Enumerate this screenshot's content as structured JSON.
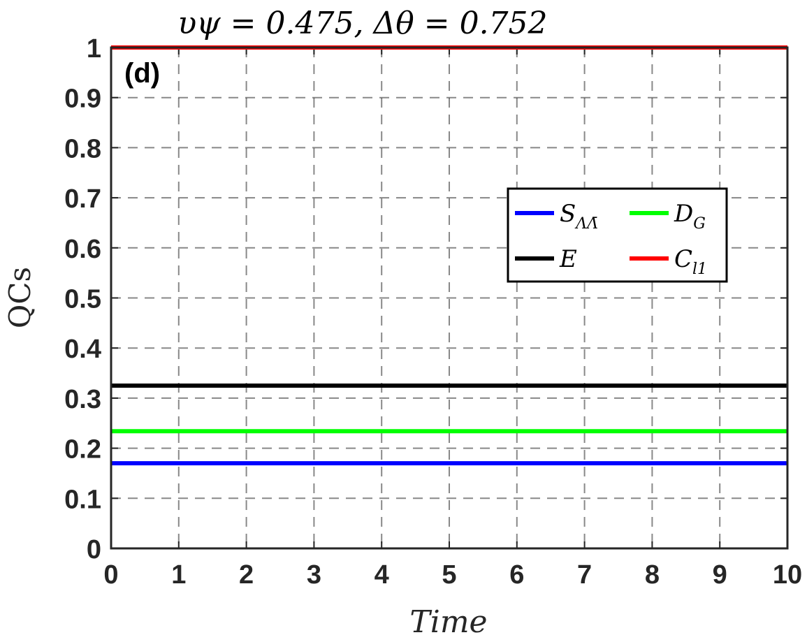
{
  "chart_data": {
    "type": "line",
    "title": "υψ = 0.475, Δθ = 0.752",
    "panel_label": "(d)",
    "xlabel": "Time",
    "ylabel": "QCs",
    "xlim": [
      0,
      10
    ],
    "ylim": [
      0,
      1
    ],
    "xticks": [
      0,
      1,
      2,
      3,
      4,
      5,
      6,
      7,
      8,
      9,
      10
    ],
    "xtick_labels": [
      "0",
      "1",
      "2",
      "3",
      "4",
      "5",
      "6",
      "7",
      "8",
      "9",
      "10"
    ],
    "yticks": [
      0,
      0.1,
      0.2,
      0.3,
      0.4,
      0.5,
      0.6,
      0.7,
      0.8,
      0.9,
      1
    ],
    "ytick_labels": [
      "0",
      "0.1",
      "0.2",
      "0.3",
      "0.4",
      "0.5",
      "0.6",
      "0.7",
      "0.8",
      "0.9",
      "1"
    ],
    "grid": true,
    "legend_position": "right-middle",
    "x": [
      0,
      10
    ],
    "series": [
      {
        "name": "S_ΛΛ̄",
        "name_main": "S",
        "name_sub": "ΛΛ̄",
        "color": "#0000ff",
        "values": [
          0.17,
          0.17
        ]
      },
      {
        "name": "D_G",
        "name_main": "D",
        "name_sub": "G",
        "color": "#00ff00",
        "values": [
          0.234,
          0.234
        ]
      },
      {
        "name": "E",
        "name_main": "E",
        "name_sub": "",
        "color": "#000000",
        "values": [
          0.325,
          0.325
        ]
      },
      {
        "name": "C_l1",
        "name_main": "C",
        "name_sub": "l1",
        "color": "#ff0000",
        "values": [
          1,
          1
        ]
      }
    ]
  }
}
